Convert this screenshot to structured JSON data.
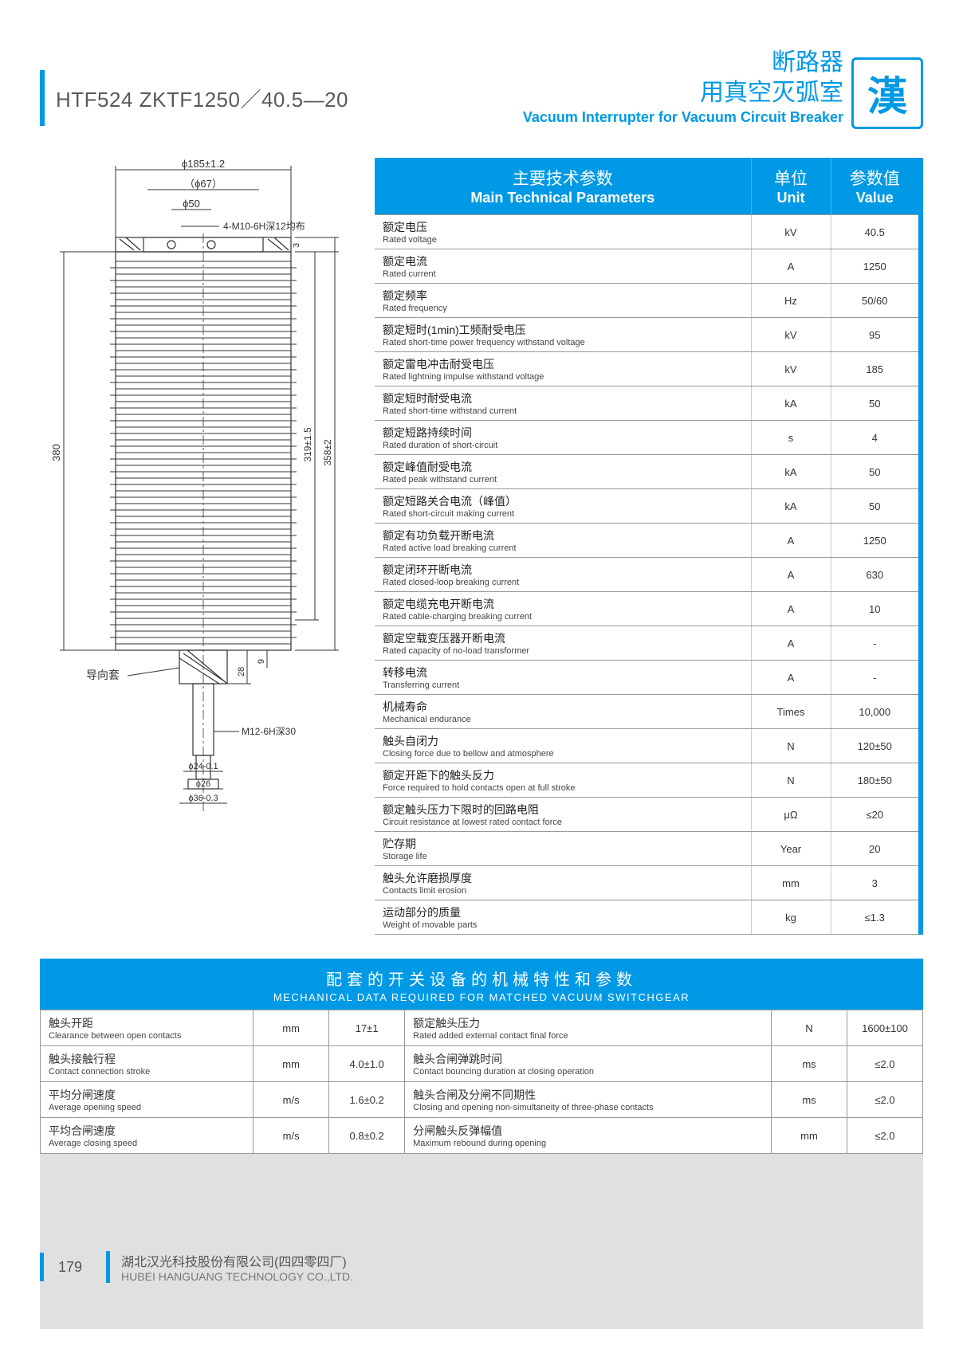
{
  "model": "HTF524   ZKTF1250／40.5—20",
  "header": {
    "cn_line1": "断路器",
    "cn_line2": "用真空灭弧室",
    "en": "Vacuum Interrupter for Vacuum Circuit Breaker",
    "logo_char": "漢"
  },
  "diagram": {
    "dims": {
      "d1": "ϕ185±1.2",
      "d2": "（ϕ67）",
      "d3": "ϕ50",
      "holes": "4-M10-6H深12均布",
      "h_total": "380",
      "h_inner1": "319±1.5",
      "h_inner2": "358±2",
      "top_gap": "3",
      "label_guide": "导向套",
      "dim_28": "28",
      "dim_9": "9",
      "thread": "M12-6H深30",
      "d24": "ϕ24-0.1",
      "d26": "ϕ26",
      "d36": "ϕ36-0.3"
    }
  },
  "params_header": {
    "col1_cn": "主要技术参数",
    "col1_en": "Main Technical Parameters",
    "col2_cn": "单位",
    "col2_en": "Unit",
    "col3_cn": "参数值",
    "col3_en": "Value"
  },
  "params": [
    {
      "cn": "额定电压",
      "en": "Rated voltage",
      "unit": "kV",
      "val": "40.5"
    },
    {
      "cn": "额定电流",
      "en": "Rated current",
      "unit": "A",
      "val": "1250"
    },
    {
      "cn": "额定频率",
      "en": "Rated frequency",
      "unit": "Hz",
      "val": "50/60"
    },
    {
      "cn": "额定短时(1min)工频耐受电压",
      "en": "Rated short-time power frequency withstand voltage",
      "unit": "kV",
      "val": "95"
    },
    {
      "cn": "额定雷电冲击耐受电压",
      "en": "Rated lightning impulse withstand voltage",
      "unit": "kV",
      "val": "185"
    },
    {
      "cn": "额定短时耐受电流",
      "en": "Rated short-time withstand current",
      "unit": "kA",
      "val": "50"
    },
    {
      "cn": "额定短路持续时间",
      "en": "Rated duration of short-circuit",
      "unit": "s",
      "val": "4"
    },
    {
      "cn": "额定峰值耐受电流",
      "en": "Rated peak withstand current",
      "unit": "kA",
      "val": "50"
    },
    {
      "cn": "额定短路关合电流（峰值）",
      "en": "Rated short-circuit making  current",
      "unit": "kA",
      "val": "50"
    },
    {
      "cn": "额定有功负载开断电流",
      "en": "Rated active load breaking current",
      "unit": "A",
      "val": "1250"
    },
    {
      "cn": "额定闭环开断电流",
      "en": "Rated closed-loop breaking current",
      "unit": "A",
      "val": "630"
    },
    {
      "cn": "额定电缆充电开断电流",
      "en": "Rated cable-charging breaking current",
      "unit": "A",
      "val": "10"
    },
    {
      "cn": "额定空载变压器开断电流",
      "en": "Rated capacity of no-load transformer",
      "unit": "A",
      "val": "-"
    },
    {
      "cn": "转移电流",
      "en": "Transferring current",
      "unit": "A",
      "val": "-"
    },
    {
      "cn": "机械寿命",
      "en": "Mechanical endurance",
      "unit": "Times",
      "val": "10,000"
    },
    {
      "cn": "触头自闭力",
      "en": "Closing force due to bellow and atmosphere",
      "unit": "N",
      "val": "120±50"
    },
    {
      "cn": "额定开距下的触头反力",
      "en": "Force required to hold contacts open at full stroke",
      "unit": "N",
      "val": "180±50"
    },
    {
      "cn": "额定触头压力下限时的回路电阻",
      "en": "Circuit resistance at lowest rated contact force",
      "unit": "μΩ",
      "val": "≤20"
    },
    {
      "cn": "贮存期",
      "en": "Storage life",
      "unit": "Year",
      "val": "20"
    },
    {
      "cn": "触头允许磨损厚度",
      "en": "Contacts limit erosion",
      "unit": "mm",
      "val": "3"
    },
    {
      "cn": "运动部分的质量",
      "en": "Weight of  movable parts",
      "unit": "kg",
      "val": "≤1.3"
    }
  ],
  "mech_header": {
    "cn": "配套的开关设备的机械特性和参数",
    "en": "MECHANICAL DATA REQUIRED FOR MATCHED VACUUM SWITCHGEAR"
  },
  "mech_left": [
    {
      "cn": "触头开距",
      "en": "Clearance between open contacts",
      "unit": "mm",
      "val": "17±1"
    },
    {
      "cn": "触头接触行程",
      "en": "Contact connection stroke",
      "unit": "mm",
      "val": "4.0±1.0"
    },
    {
      "cn": "平均分闸速度",
      "en": "Average opening speed",
      "unit": "m/s",
      "val": "1.6±0.2"
    },
    {
      "cn": "平均合闸速度",
      "en": "Average closing speed",
      "unit": "m/s",
      "val": "0.8±0.2"
    }
  ],
  "mech_right": [
    {
      "cn": "额定触头压力",
      "en": "Rated added external contact final force",
      "unit": "N",
      "val": "1600±100"
    },
    {
      "cn": "触头合闸弹跳时间",
      "en": "Contact bouncing duration at closing operation",
      "unit": "ms",
      "val": "≤2.0"
    },
    {
      "cn": "触头合闸及分闸不同期性",
      "en": "Closing and opening non-simultaneity of three-phase contacts",
      "unit": "ms",
      "val": "≤2.0"
    },
    {
      "cn": "分闸触头反弹幅值",
      "en": "Maximum rebound during opening",
      "unit": "mm",
      "val": "≤2.0"
    }
  ],
  "footer": {
    "page": "179",
    "company_cn": "湖北汉光科技股份有限公司(四四零四厂)",
    "company_en": "HUBEI HANGUANG TECHNOLOGY CO.,LTD."
  },
  "colors": {
    "brand": "#0099e5",
    "border": "#999999",
    "text": "#333333",
    "grey_bg": "#dfe0e2"
  }
}
